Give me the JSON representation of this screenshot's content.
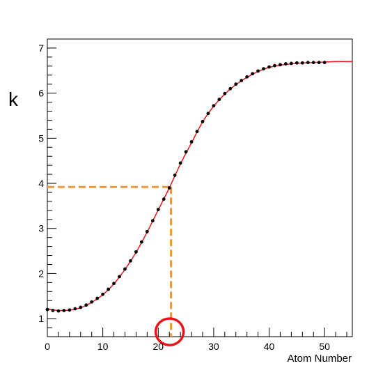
{
  "chart_data": {
    "type": "line",
    "title": "",
    "xlabel": "Atom Number",
    "ylabel": "k",
    "xlim": [
      0,
      55
    ],
    "ylim": [
      0.6,
      7.2
    ],
    "x_ticks": [
      0,
      10,
      20,
      30,
      40,
      50
    ],
    "y_ticks": [
      1,
      2,
      3,
      4,
      5,
      6,
      7
    ],
    "grid": false,
    "legend": "none",
    "series": [
      {
        "kind": "points",
        "color": "#000000",
        "x": [
          0,
          1,
          2,
          3,
          4,
          5,
          6,
          7,
          8,
          9,
          10,
          11,
          12,
          13,
          14,
          15,
          16,
          17,
          18,
          19,
          20,
          21,
          22,
          23,
          24,
          25,
          26,
          27,
          28,
          29,
          30,
          31,
          32,
          33,
          34,
          35,
          36,
          37,
          38,
          39,
          40,
          41,
          42,
          43,
          44,
          45,
          46,
          47,
          48,
          49,
          50
        ],
        "y": [
          1.2,
          1.18,
          1.17,
          1.18,
          1.19,
          1.22,
          1.25,
          1.3,
          1.37,
          1.45,
          1.54,
          1.65,
          1.78,
          1.93,
          2.1,
          2.28,
          2.48,
          2.7,
          2.93,
          3.17,
          3.42,
          3.65,
          3.9,
          4.18,
          4.45,
          4.7,
          4.92,
          5.15,
          5.37,
          5.55,
          5.72,
          5.86,
          5.99,
          6.1,
          6.2,
          6.28,
          6.36,
          6.43,
          6.49,
          6.54,
          6.58,
          6.61,
          6.63,
          6.65,
          6.66,
          6.67,
          6.67,
          6.68,
          6.68,
          6.68,
          6.68
        ]
      },
      {
        "kind": "fit-curve",
        "color": "#e8151b",
        "x": [
          0,
          2,
          4,
          6,
          8,
          10,
          12,
          14,
          16,
          18,
          20,
          22,
          24,
          26,
          28,
          30,
          32,
          34,
          36,
          38,
          40,
          42,
          44,
          46,
          48,
          50,
          52,
          55
        ],
        "y": [
          1.22,
          1.18,
          1.19,
          1.24,
          1.36,
          1.53,
          1.77,
          2.09,
          2.47,
          2.92,
          3.41,
          3.9,
          4.43,
          4.9,
          5.36,
          5.71,
          5.98,
          6.19,
          6.35,
          6.48,
          6.57,
          6.62,
          6.65,
          6.67,
          6.68,
          6.69,
          6.7,
          6.7
        ]
      }
    ],
    "annotations": {
      "guide_x": 22.3,
      "guide_y": 3.92,
      "guide_color": "#f2963a",
      "circle_x": 22.3,
      "circle_color": "#e8151b"
    }
  }
}
